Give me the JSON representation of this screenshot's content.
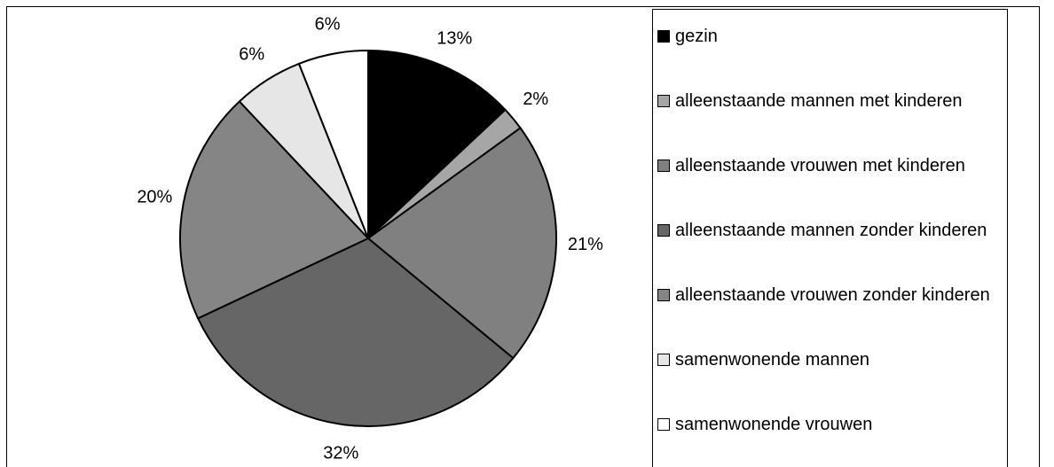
{
  "chart_data": {
    "type": "pie",
    "categories": [
      "gezin",
      "alleenstaande mannen met kinderen",
      "alleenstaande vrouwen met kinderen",
      "alleenstaande mannen zonder kinderen",
      "alleenstaande vrouwen zonder kinderen",
      "samenwonende mannen",
      "samenwonende vrouwen"
    ],
    "values": [
      13,
      2,
      21,
      32,
      20,
      6,
      6
    ],
    "value_labels": [
      "13%",
      "2%",
      "21%",
      "32%",
      "20%",
      "6%",
      "6%"
    ],
    "colors": [
      "#000000",
      "#a6a6a6",
      "#808080",
      "#666666",
      "#858585",
      "#e6e6e6",
      "#ffffff"
    ]
  }
}
